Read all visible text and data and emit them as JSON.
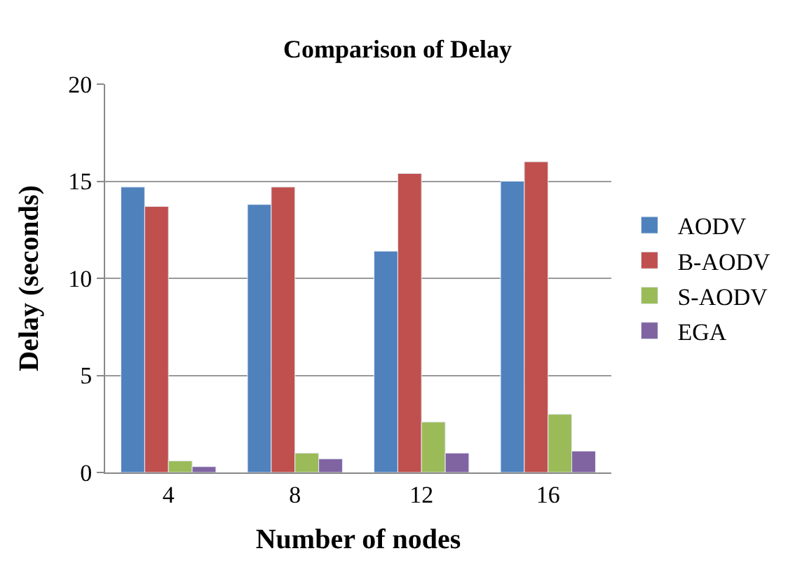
{
  "chart_data": {
    "type": "bar",
    "title": "Comparison of Delay",
    "xlabel": "Number of nodes",
    "ylabel": "Delay (seconds)",
    "categories": [
      "4",
      "8",
      "12",
      "16"
    ],
    "series": [
      {
        "name": "AODV",
        "color": "#4f81bd",
        "values": [
          14.7,
          13.8,
          11.4,
          15.0
        ]
      },
      {
        "name": "B-AODV",
        "color": "#c0504d",
        "values": [
          13.7,
          14.7,
          15.4,
          16.0
        ]
      },
      {
        "name": "S-AODV",
        "color": "#9bbb59",
        "values": [
          0.6,
          1.0,
          2.6,
          3.0
        ]
      },
      {
        "name": "EGA",
        "color": "#8064a2",
        "values": [
          0.3,
          0.7,
          1.0,
          1.1
        ]
      }
    ],
    "ylim": [
      0,
      20
    ],
    "yticks": [
      0,
      5,
      10,
      15,
      20
    ],
    "grid": "y",
    "legend": "right"
  }
}
